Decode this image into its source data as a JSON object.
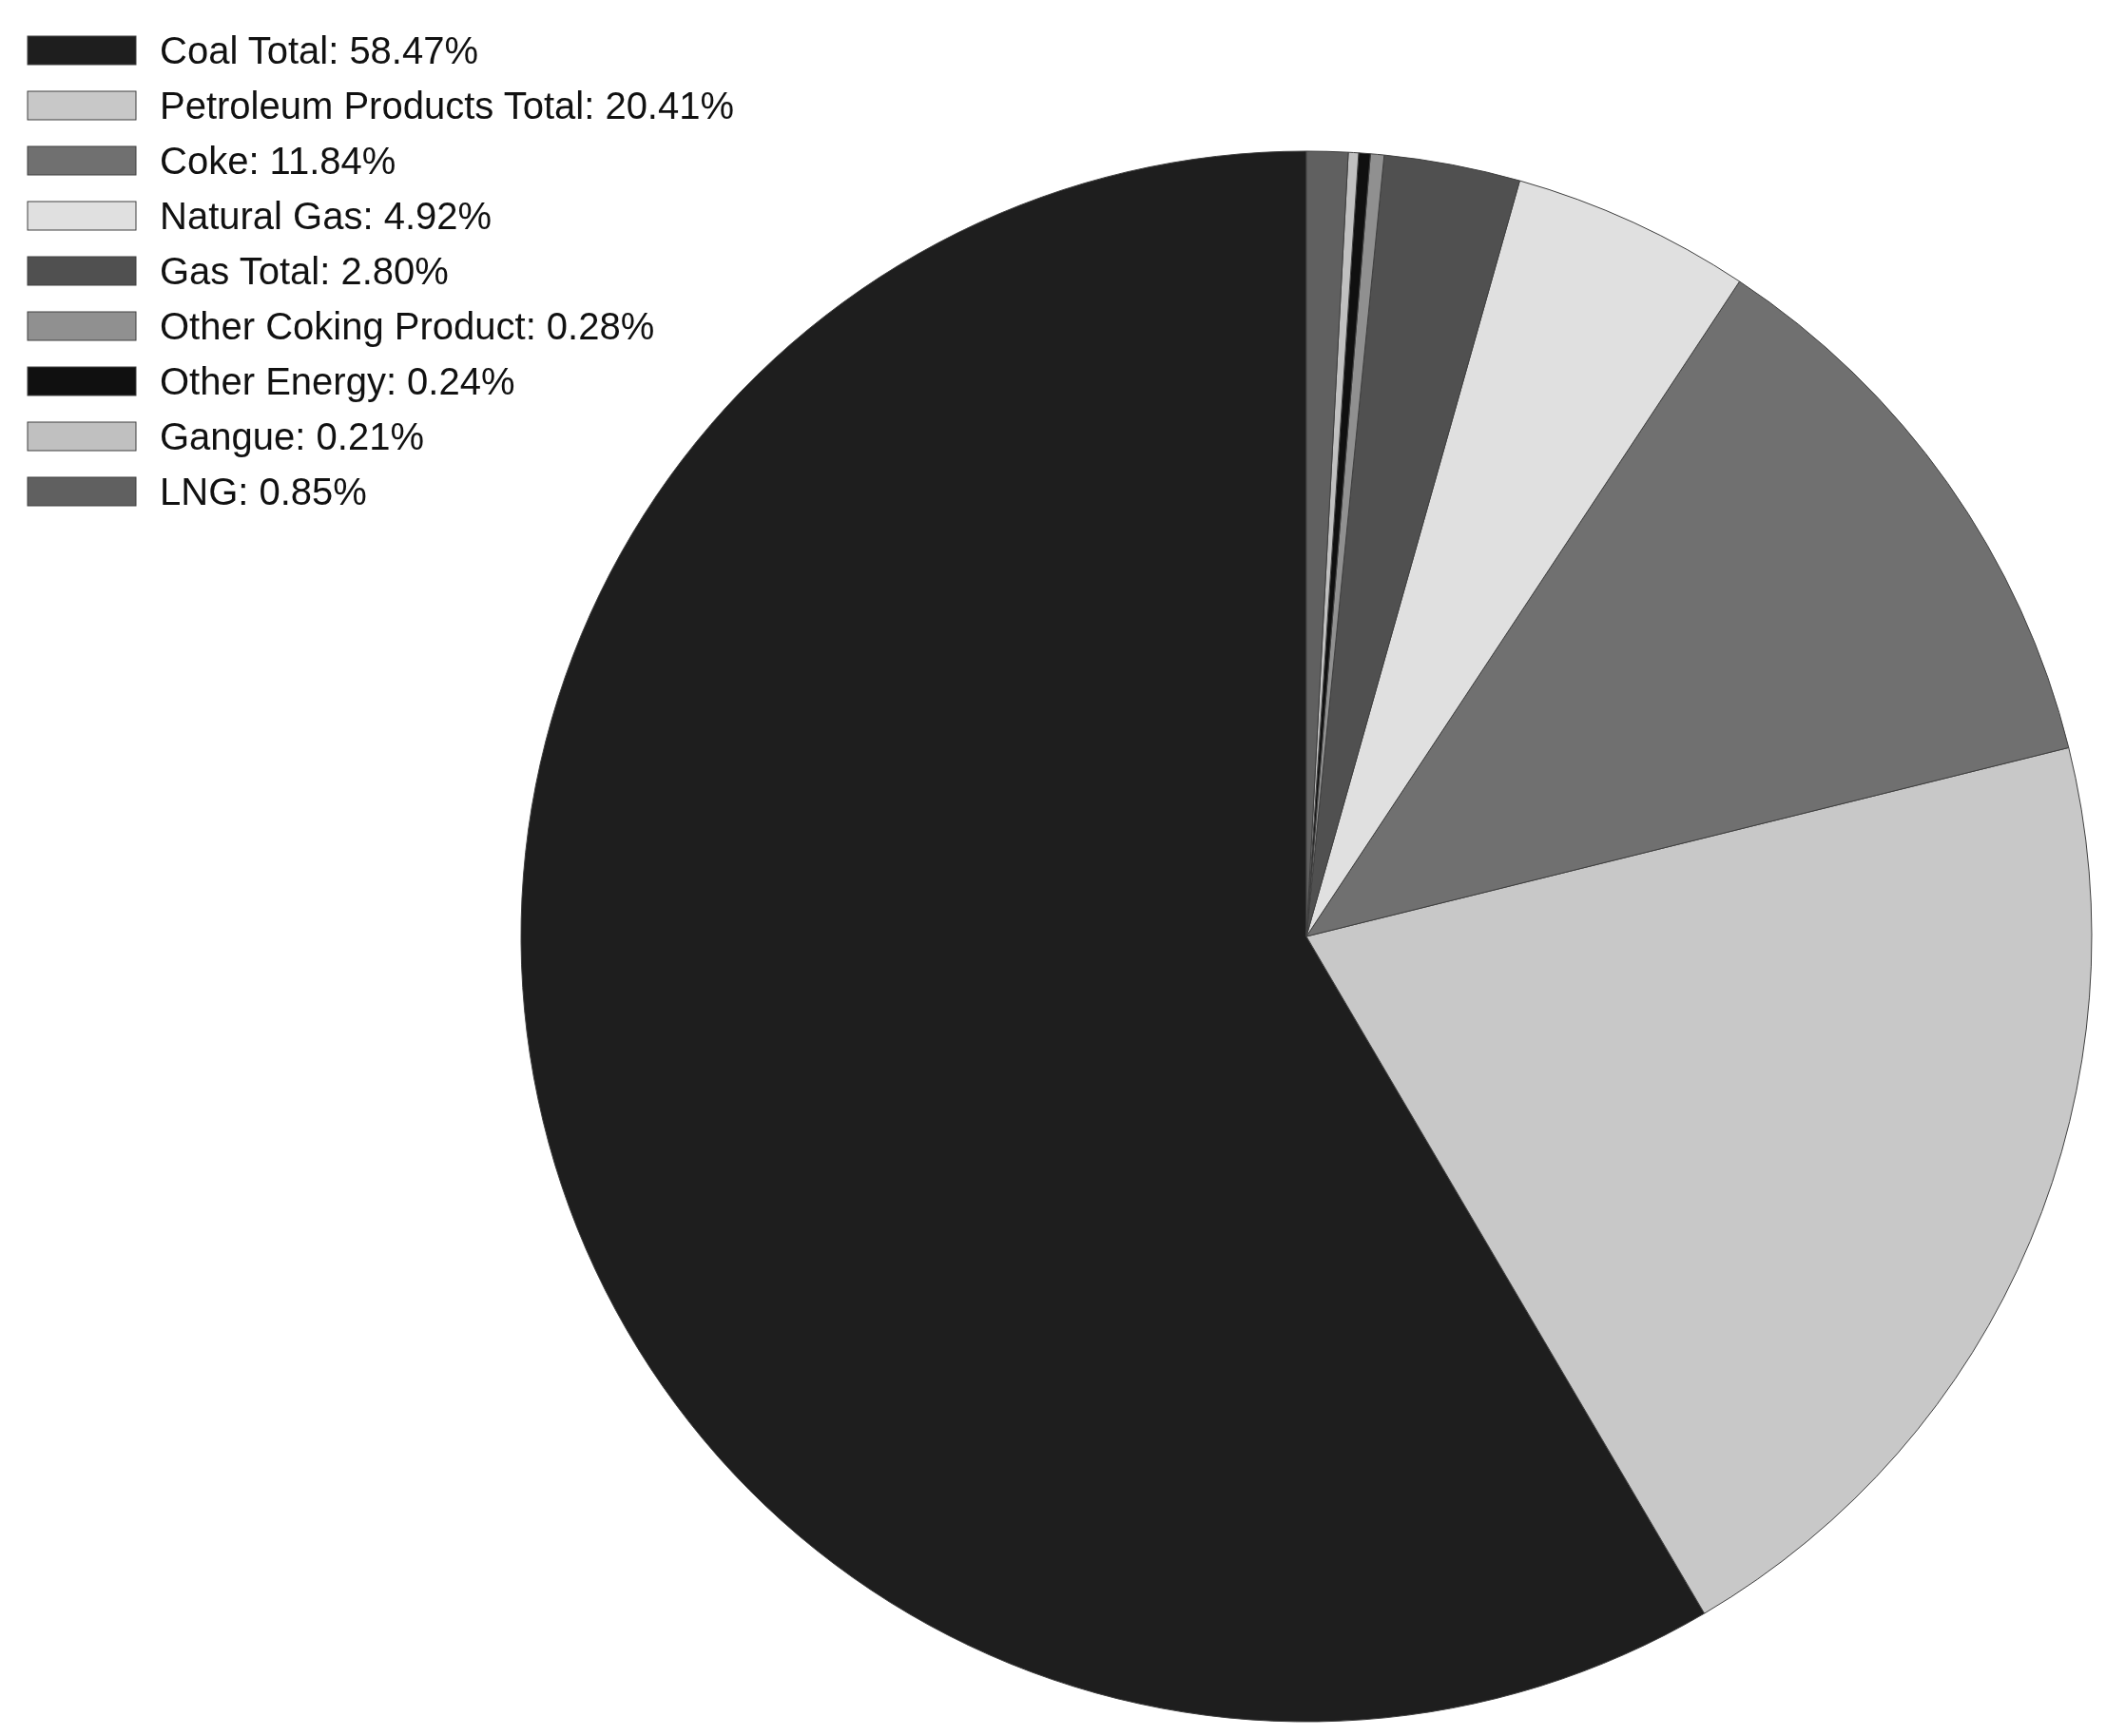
{
  "chart_data": {
    "type": "pie",
    "categories": [
      "Coal Total: 58.47%",
      "Petroleum Products Total: 20.41%",
      "Coke: 11.84%",
      "Natural Gas: 4.92%",
      "Gas Total: 2.80%",
      "Other Coking Product: 0.28%",
      "Other Energy: 0.24%",
      "Gangue: 0.21%",
      "LNG: 0.85%"
    ],
    "values": [
      58.47,
      20.41,
      11.84,
      4.92,
      2.8,
      0.28,
      0.24,
      0.21,
      0.85
    ],
    "colors": [
      "#1e1e1e",
      "#c8c8c8",
      "#707070",
      "#e0e0e0",
      "#505050",
      "#909090",
      "#101010",
      "#c0c0c0",
      "#606060"
    ],
    "legend": "top left"
  }
}
